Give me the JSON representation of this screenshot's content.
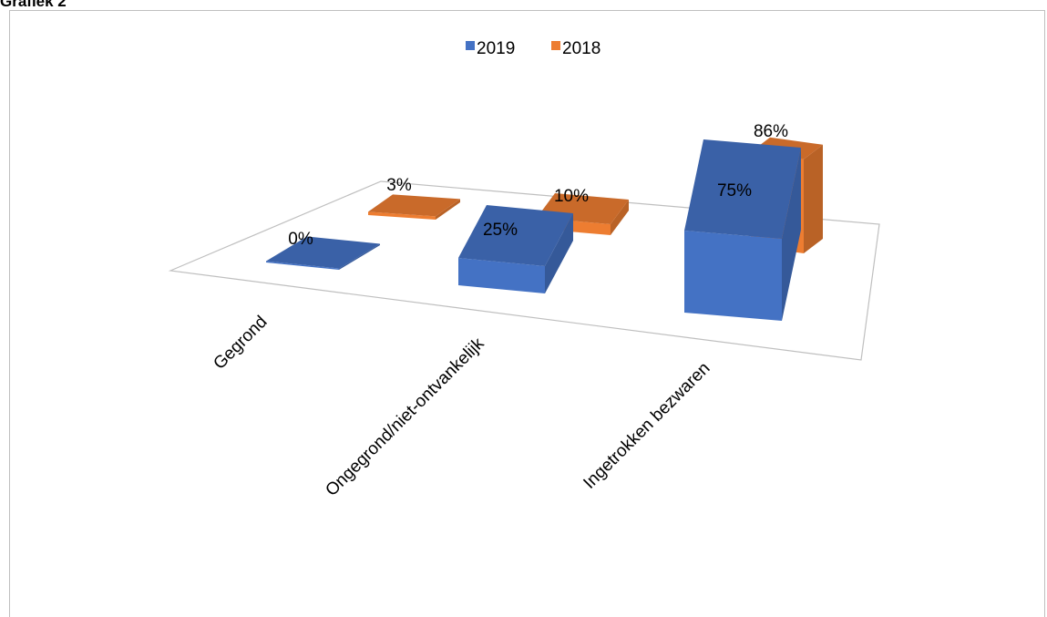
{
  "heading": "Grafiek 2",
  "chart_data": {
    "type": "bar",
    "categories": [
      "Gegrond",
      "Ongegrond/niet-ontvankelijk",
      "Ingetrokken bezwaren"
    ],
    "series": [
      {
        "name": "2019",
        "values": [
          0,
          25,
          75
        ],
        "labels": [
          "0%",
          "25%",
          "75%"
        ],
        "color": "#4472c4"
      },
      {
        "name": "2018",
        "values": [
          3,
          10,
          86
        ],
        "labels": [
          "3%",
          "10%",
          "86%"
        ],
        "color": "#ed7d31"
      }
    ],
    "unit": "%",
    "legend_position": "top-center",
    "projection": "3d"
  }
}
